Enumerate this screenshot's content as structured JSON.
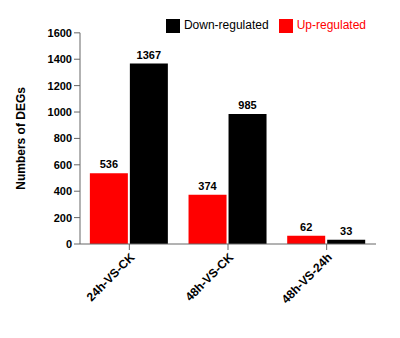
{
  "chart_data": {
    "type": "bar",
    "categories": [
      "24h-VS-CK",
      "48h-VS-CK",
      "48h-VS-24h"
    ],
    "series": [
      {
        "name": "Up-regulated",
        "color": "#FF0000",
        "values": [
          536,
          374,
          62
        ]
      },
      {
        "name": "Down-regulated",
        "color": "#000000",
        "values": [
          1367,
          985,
          33
        ]
      }
    ],
    "ylabel": "Numbers of DEGs",
    "ylim": [
      0,
      1600
    ],
    "yticks": [
      0,
      200,
      400,
      600,
      800,
      1000,
      1200,
      1400,
      1600
    ],
    "data_labels": true,
    "legend": "upper right",
    "grid": false
  }
}
